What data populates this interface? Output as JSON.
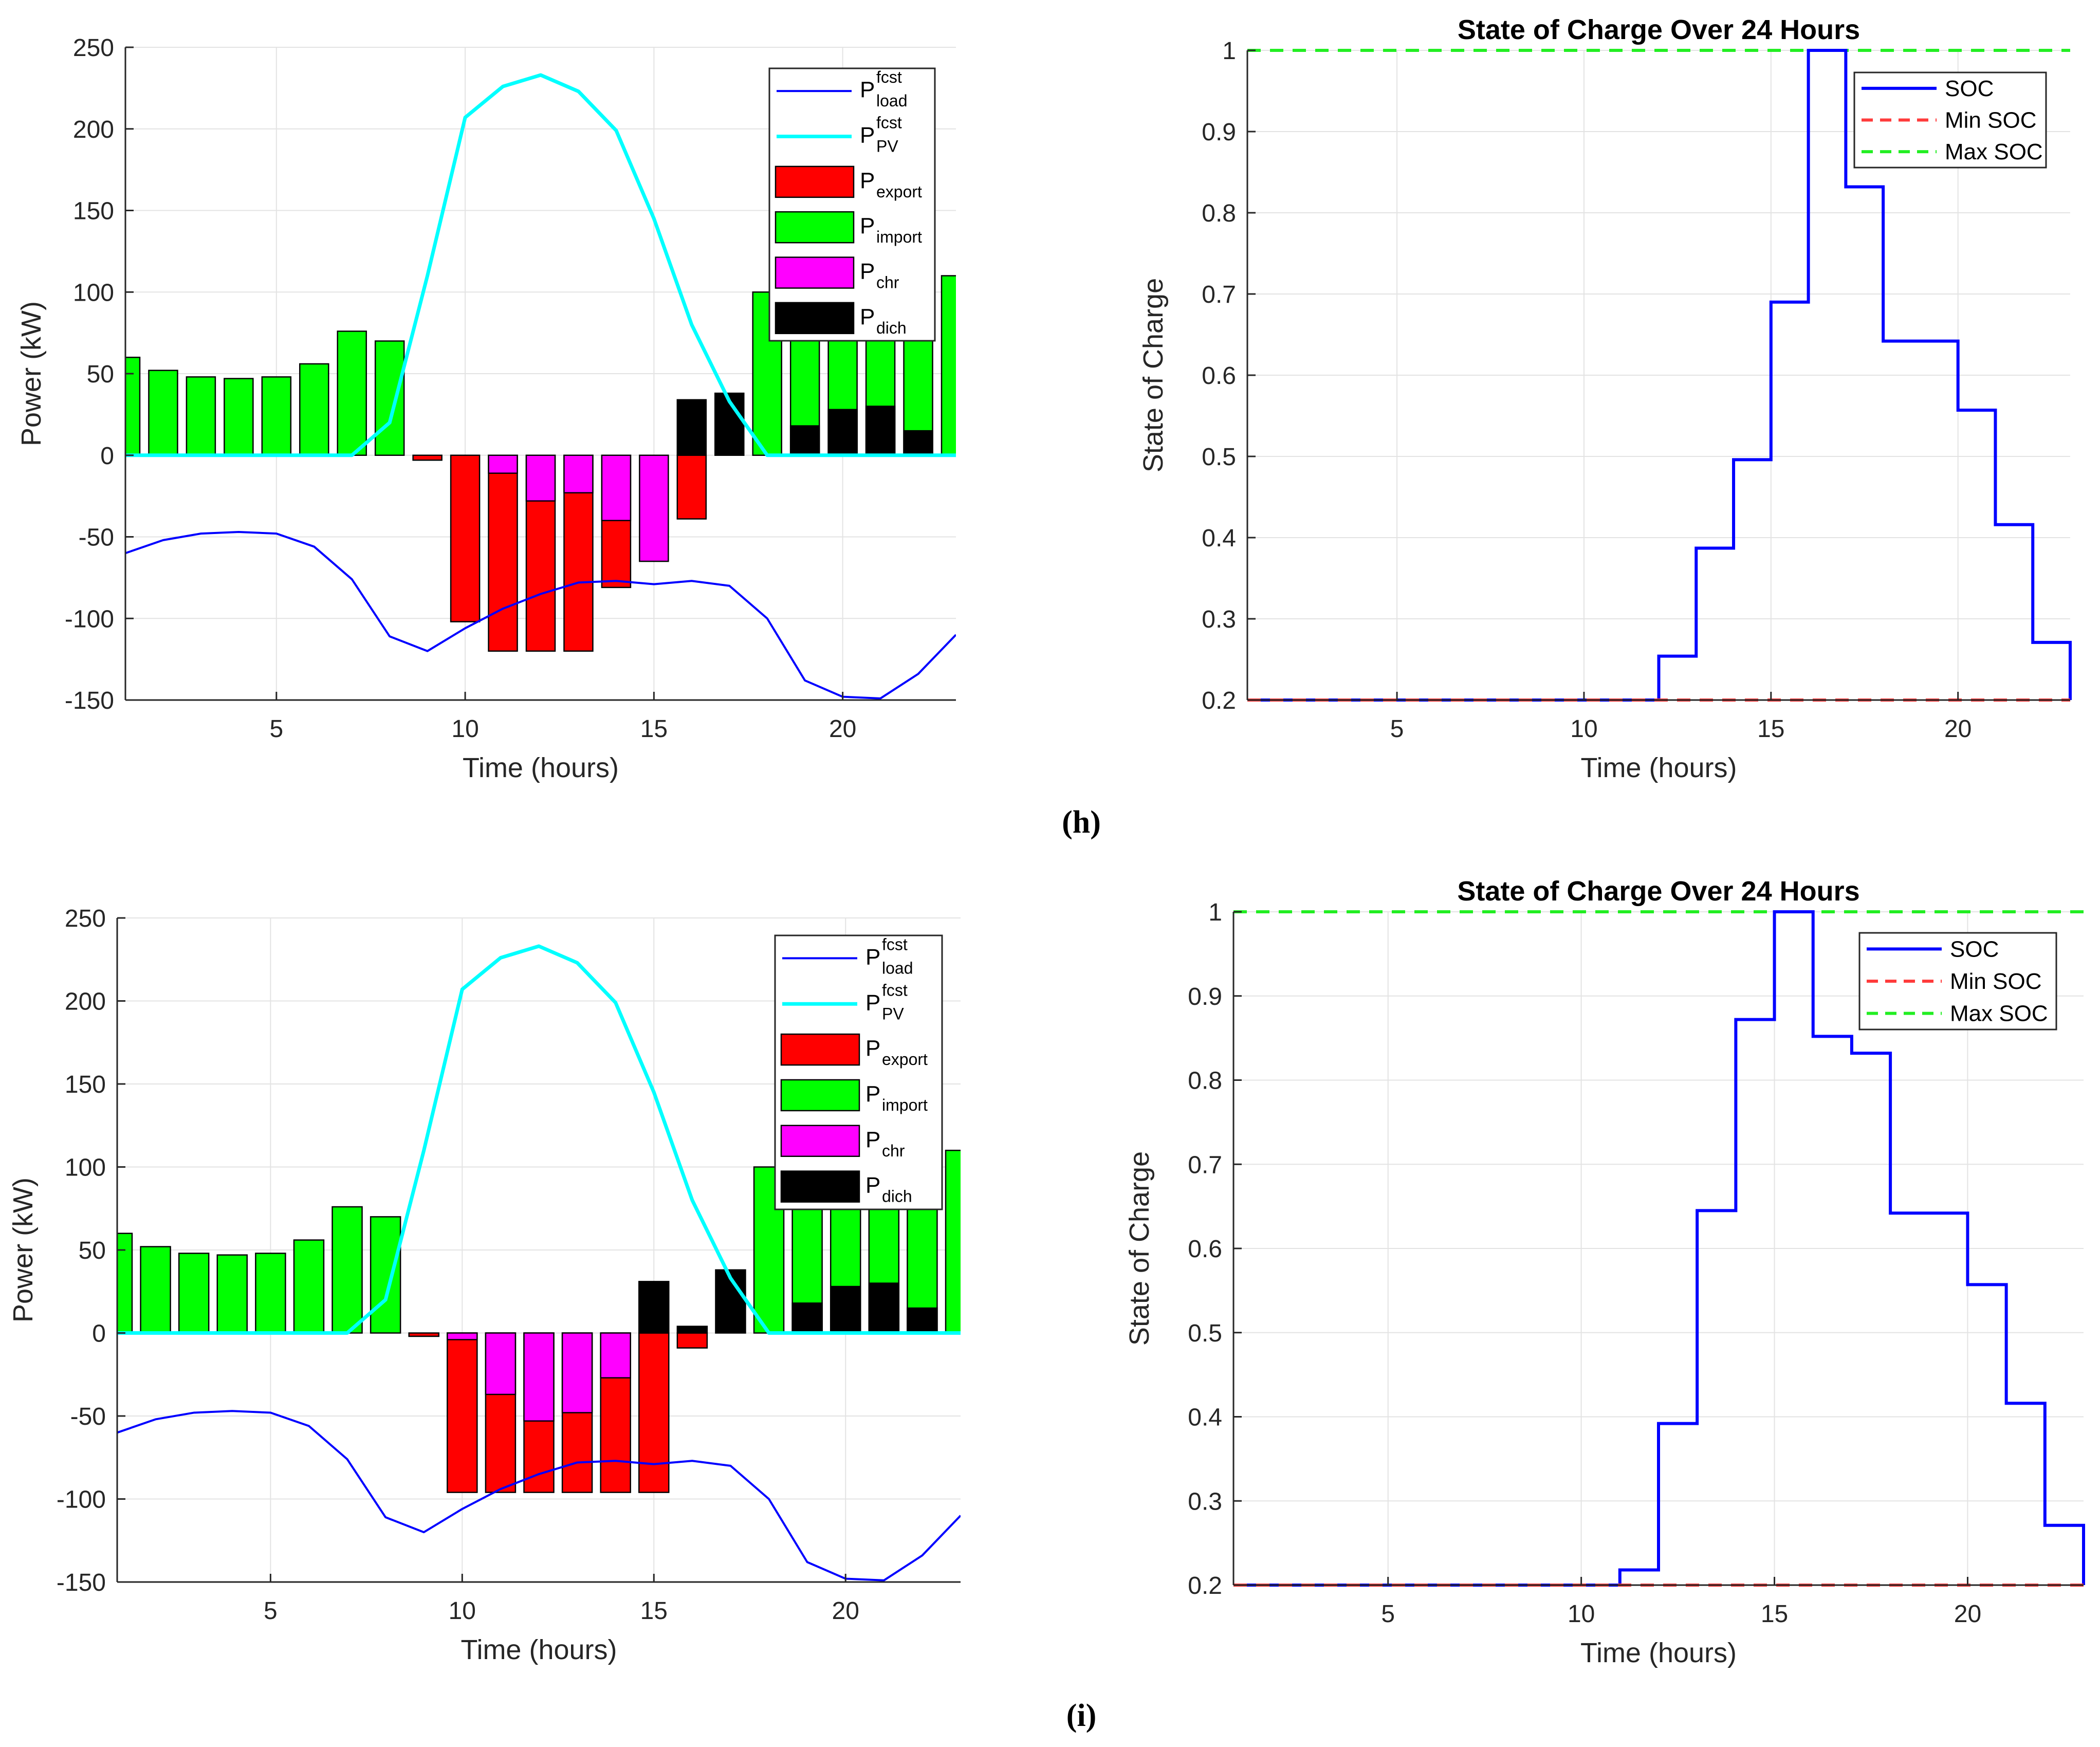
{
  "panels": [
    {
      "label": "(h)"
    },
    {
      "label": "(i)"
    }
  ],
  "colors": {
    "load": "#0000ff",
    "pv": "#00ffff",
    "export": "#ff0000",
    "import": "#00ff00",
    "chr": "#ff00ff",
    "dich": "#000000",
    "soc": "#0000ff",
    "min_soc": "#ff3b3b",
    "max_soc": "#22ee22",
    "grid": "#e3e3e3",
    "axis": "#262626"
  },
  "chart_data": [
    {
      "id": "h-power",
      "panel": "(h)",
      "type": "bar",
      "title": "",
      "xlabel": "Time (hours)",
      "ylabel": "Power (kW)",
      "xlim": [
        1,
        23
      ],
      "ylim": [
        -150,
        250
      ],
      "xticks": [
        5,
        10,
        15,
        20
      ],
      "yticks": [
        -150,
        -100,
        -50,
        0,
        50,
        100,
        150,
        200,
        250
      ],
      "legend": [
        {
          "key": "load",
          "base": "P",
          "sup": "fcst",
          "sub": "load",
          "kind": "line"
        },
        {
          "key": "pv",
          "base": "P",
          "sup": "fcst",
          "sub": "PV",
          "kind": "line"
        },
        {
          "key": "export",
          "base": "P",
          "sup": "",
          "sub": "export",
          "kind": "patch"
        },
        {
          "key": "import",
          "base": "P",
          "sup": "",
          "sub": "import",
          "kind": "patch"
        },
        {
          "key": "chr",
          "base": "P",
          "sup": "",
          "sub": "chr",
          "kind": "patch"
        },
        {
          "key": "dich",
          "base": "P",
          "sup": "",
          "sub": "dich",
          "kind": "patch"
        }
      ],
      "hours": [
        1,
        2,
        3,
        4,
        5,
        6,
        7,
        8,
        9,
        10,
        11,
        12,
        13,
        14,
        15,
        16,
        17,
        18,
        19,
        20,
        21,
        22,
        23
      ],
      "series": [
        {
          "name": "load",
          "kind": "line",
          "values": [
            -60,
            -52,
            -48,
            -47,
            -48,
            -56,
            -76,
            -111,
            -120,
            -106,
            -94,
            -85,
            -78,
            -77,
            -79,
            -77,
            -80,
            -100,
            -138,
            -148,
            -149,
            -134,
            -110
          ]
        },
        {
          "name": "pv",
          "kind": "line",
          "values": [
            0,
            0,
            0,
            0,
            0,
            0,
            0,
            20,
            110,
            207,
            226,
            233,
            223,
            199,
            145,
            80,
            33,
            0,
            0,
            0,
            0,
            0,
            0
          ]
        },
        {
          "name": "import",
          "kind": "bar",
          "values": [
            60,
            52,
            48,
            47,
            48,
            56,
            76,
            70,
            0,
            0,
            0,
            0,
            0,
            0,
            0,
            0,
            0,
            100,
            100,
            100,
            100,
            100,
            110
          ]
        },
        {
          "name": "dich",
          "kind": "bar",
          "values": [
            0,
            0,
            0,
            0,
            0,
            0,
            0,
            0,
            0,
            0,
            0,
            0,
            0,
            0,
            0,
            34,
            38,
            0,
            18,
            28,
            30,
            15,
            0
          ]
        },
        {
          "name": "export",
          "kind": "bar",
          "values": [
            0,
            0,
            0,
            0,
            0,
            0,
            0,
            0,
            -3,
            -102,
            -120,
            -120,
            -120,
            -81,
            0,
            -39,
            0,
            0,
            0,
            0,
            0,
            0,
            0
          ]
        },
        {
          "name": "chr",
          "kind": "bar",
          "values": [
            0,
            0,
            0,
            0,
            0,
            0,
            0,
            0,
            0,
            0,
            -11,
            -28,
            -23,
            -40,
            -65,
            0,
            0,
            0,
            0,
            0,
            0,
            0,
            0
          ]
        }
      ]
    },
    {
      "id": "h-soc",
      "panel": "(h)",
      "type": "line",
      "title": "State of Charge Over 24 Hours",
      "xlabel": "Time (hours)",
      "ylabel": "State of Charge",
      "xlim": [
        1,
        23
      ],
      "ylim": [
        0.2,
        1
      ],
      "xticks": [
        5,
        10,
        15,
        20
      ],
      "yticks": [
        0.2,
        0.3,
        0.4,
        0.5,
        0.6,
        0.7,
        0.8,
        0.9,
        1
      ],
      "legend": [
        {
          "key": "soc",
          "label": "SOC",
          "kind": "solid"
        },
        {
          "key": "min_soc",
          "label": "Min SOC",
          "kind": "dashed"
        },
        {
          "key": "max_soc",
          "label": "Max SOC",
          "kind": "dashed"
        }
      ],
      "min_soc": 0.2,
      "max_soc": 1,
      "hours": [
        1,
        2,
        3,
        4,
        5,
        6,
        7,
        8,
        9,
        10,
        11,
        12,
        13,
        14,
        15,
        16,
        17,
        18,
        19,
        20,
        21,
        22,
        23
      ],
      "soc": [
        0.2,
        0.2,
        0.2,
        0.2,
        0.2,
        0.2,
        0.2,
        0.2,
        0.2,
        0.2,
        0.2,
        0.254,
        0.387,
        0.496,
        0.69,
        1,
        0.832,
        0.642,
        0.642,
        0.557,
        0.416,
        0.271,
        0.2
      ]
    },
    {
      "id": "i-power",
      "panel": "(i)",
      "type": "bar",
      "title": "",
      "xlabel": "Time (hours)",
      "ylabel": "Power (kW)",
      "xlim": [
        1,
        23
      ],
      "ylim": [
        -150,
        250
      ],
      "xticks": [
        5,
        10,
        15,
        20
      ],
      "yticks": [
        -150,
        -100,
        -50,
        0,
        50,
        100,
        150,
        200,
        250
      ],
      "legend": [
        {
          "key": "load",
          "base": "P",
          "sup": "fcst",
          "sub": "load",
          "kind": "line"
        },
        {
          "key": "pv",
          "base": "P",
          "sup": "fcst",
          "sub": "PV",
          "kind": "line"
        },
        {
          "key": "export",
          "base": "P",
          "sup": "",
          "sub": "export",
          "kind": "patch"
        },
        {
          "key": "import",
          "base": "P",
          "sup": "",
          "sub": "import",
          "kind": "patch"
        },
        {
          "key": "chr",
          "base": "P",
          "sup": "",
          "sub": "chr",
          "kind": "patch"
        },
        {
          "key": "dich",
          "base": "P",
          "sup": "",
          "sub": "dich",
          "kind": "patch"
        }
      ],
      "hours": [
        1,
        2,
        3,
        4,
        5,
        6,
        7,
        8,
        9,
        10,
        11,
        12,
        13,
        14,
        15,
        16,
        17,
        18,
        19,
        20,
        21,
        22,
        23
      ],
      "series": [
        {
          "name": "load",
          "kind": "line",
          "values": [
            -60,
            -52,
            -48,
            -47,
            -48,
            -56,
            -76,
            -111,
            -120,
            -106,
            -94,
            -85,
            -78,
            -77,
            -79,
            -77,
            -80,
            -100,
            -138,
            -148,
            -149,
            -134,
            -110
          ]
        },
        {
          "name": "pv",
          "kind": "line",
          "values": [
            0,
            0,
            0,
            0,
            0,
            0,
            0,
            20,
            110,
            207,
            226,
            233,
            223,
            199,
            145,
            80,
            33,
            0,
            0,
            0,
            0,
            0,
            0
          ]
        },
        {
          "name": "import",
          "kind": "bar",
          "values": [
            60,
            52,
            48,
            47,
            48,
            56,
            76,
            70,
            0,
            0,
            0,
            0,
            0,
            0,
            0,
            0,
            0,
            100,
            100,
            100,
            100,
            100,
            110
          ]
        },
        {
          "name": "dich",
          "kind": "bar",
          "values": [
            0,
            0,
            0,
            0,
            0,
            0,
            0,
            0,
            0,
            0,
            0,
            0,
            0,
            0,
            31,
            4,
            38,
            0,
            18,
            28,
            30,
            15,
            0
          ]
        },
        {
          "name": "export",
          "kind": "bar",
          "values": [
            0,
            0,
            0,
            0,
            0,
            0,
            0,
            0,
            -2,
            -96,
            -96,
            -96,
            -96,
            -96,
            -96,
            -9,
            0,
            0,
            0,
            0,
            0,
            0,
            0
          ]
        },
        {
          "name": "chr",
          "kind": "bar",
          "values": [
            0,
            0,
            0,
            0,
            0,
            0,
            0,
            0,
            0,
            -4,
            -37,
            -53,
            -48,
            -27,
            0,
            0,
            0,
            0,
            0,
            0,
            0,
            0,
            0
          ]
        }
      ]
    },
    {
      "id": "i-soc",
      "panel": "(i)",
      "type": "line",
      "title": "State of Charge Over 24 Hours",
      "xlabel": "Time (hours)",
      "ylabel": "State of Charge",
      "xlim": [
        1,
        23
      ],
      "ylim": [
        0.2,
        1
      ],
      "xticks": [
        5,
        10,
        15,
        20
      ],
      "yticks": [
        0.2,
        0.3,
        0.4,
        0.5,
        0.6,
        0.7,
        0.8,
        0.9,
        1
      ],
      "legend": [
        {
          "key": "soc",
          "label": "SOC",
          "kind": "solid"
        },
        {
          "key": "min_soc",
          "label": "Min SOC",
          "kind": "dashed"
        },
        {
          "key": "max_soc",
          "label": "Max SOC",
          "kind": "dashed"
        }
      ],
      "min_soc": 0.2,
      "max_soc": 1,
      "hours": [
        1,
        2,
        3,
        4,
        5,
        6,
        7,
        8,
        9,
        10,
        11,
        12,
        13,
        14,
        15,
        16,
        17,
        18,
        19,
        20,
        21,
        22,
        23
      ],
      "soc": [
        0.2,
        0.2,
        0.2,
        0.2,
        0.2,
        0.2,
        0.2,
        0.2,
        0.2,
        0.2,
        0.218,
        0.392,
        0.645,
        0.872,
        1,
        0.852,
        0.832,
        0.642,
        0.642,
        0.557,
        0.416,
        0.271,
        0.2
      ]
    }
  ]
}
